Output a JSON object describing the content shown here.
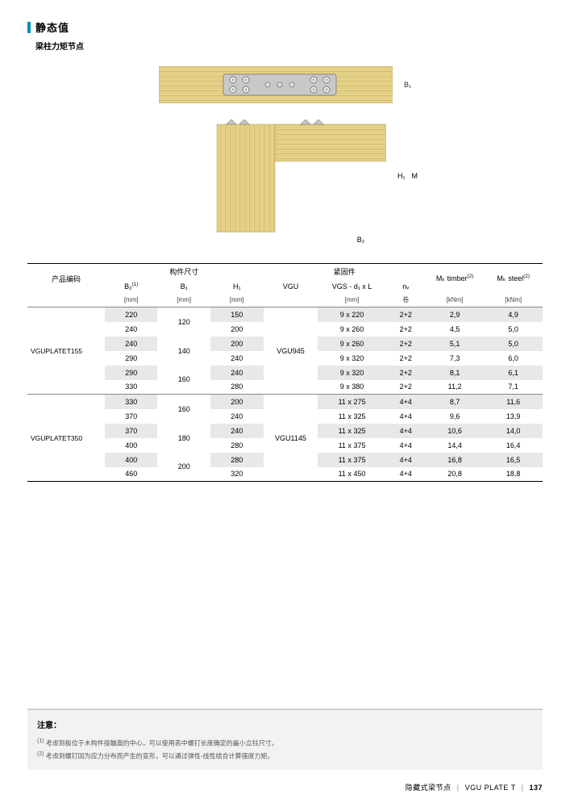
{
  "header": {
    "title": "静态值",
    "subtitle": "梁柱力矩节点"
  },
  "diagram": {
    "labels": {
      "b1": "B₁",
      "h1": "H₁",
      "m": "M",
      "b2": "B₂"
    },
    "wood_color": "#e8d38a",
    "wood_dark": "#d4bf78",
    "plate_color": "#c8c8c8",
    "plate_stroke": "#888888",
    "bolt_color": "#9aa0a6"
  },
  "table": {
    "headers": {
      "product": "产品编码",
      "group1": "构件尺寸",
      "group2": "紧固件",
      "b2": "B₂",
      "b1": "B₁",
      "h1": "H₁",
      "vgu": "VGU",
      "vgs": "VGS - d₁ x L",
      "nv": "nᵥ",
      "mk_timber": "Mₖ timber",
      "mk_steel": "Mₖ steel",
      "sup1": "(1)",
      "sup2": "(2)",
      "units_mm": "[mm]",
      "units_knm": "[kNm]",
      "units_juan": "卷"
    },
    "rows": [
      {
        "code": "VGUPLATET155",
        "vgu": "VGU945",
        "b2": "220",
        "b1": "120",
        "h1": "150",
        "vgs": "9 x 220",
        "nv": "2+2",
        "mt": "2,9",
        "ms": "4,9",
        "shade": true,
        "code_rs": 6,
        "vgu_rs": 6,
        "b1_rs": 2
      },
      {
        "b2": "240",
        "h1": "200",
        "vgs": "9 x 260",
        "nv": "2+2",
        "mt": "4,5",
        "ms": "5,0"
      },
      {
        "b2": "240",
        "b1": "140",
        "h1": "200",
        "vgs": "9 x 260",
        "nv": "2+2",
        "mt": "5,1",
        "ms": "5,0",
        "shade": true,
        "b1_rs": 2
      },
      {
        "b2": "290",
        "h1": "240",
        "vgs": "9 x 320",
        "nv": "2+2",
        "mt": "7,3",
        "ms": "6,0"
      },
      {
        "b2": "290",
        "b1": "160",
        "h1": "240",
        "vgs": "9 x 320",
        "nv": "2+2",
        "mt": "8,1",
        "ms": "6,1",
        "shade": true,
        "b1_rs": 2
      },
      {
        "b2": "330",
        "h1": "280",
        "vgs": "9 x 380",
        "nv": "2+2",
        "mt": "11,2",
        "ms": "7,1",
        "sep": true
      },
      {
        "code": "VGUPLATET350",
        "vgu": "VGU1145",
        "b2": "330",
        "b1": "160",
        "h1": "200",
        "vgs": "11 x 275",
        "nv": "4+4",
        "mt": "8,7",
        "ms": "11,6",
        "shade": true,
        "code_rs": 6,
        "vgu_rs": 6,
        "b1_rs": 2
      },
      {
        "b2": "370",
        "h1": "240",
        "vgs": "11 x 325",
        "nv": "4+4",
        "mt": "9,6",
        "ms": "13,9"
      },
      {
        "b2": "370",
        "b1": "180",
        "h1": "240",
        "vgs": "11 x 325",
        "nv": "4+4",
        "mt": "10,6",
        "ms": "14,0",
        "shade": true,
        "b1_rs": 2
      },
      {
        "b2": "400",
        "h1": "280",
        "vgs": "11 x 375",
        "nv": "4+4",
        "mt": "14,4",
        "ms": "16,4"
      },
      {
        "b2": "400",
        "b1": "200",
        "h1": "280",
        "vgs": "11 x 375",
        "nv": "4+4",
        "mt": "16,8",
        "ms": "16,5",
        "shade": true,
        "b1_rs": 2
      },
      {
        "b2": "460",
        "h1": "320",
        "vgs": "11 x 450",
        "nv": "4+4",
        "mt": "20,8",
        "ms": "18,8"
      }
    ]
  },
  "notes": {
    "title": "注意：",
    "lines": [
      "考虑到板位于木构件接触面的中心，可以使用表中螺钉长度确定的最小立柱尺寸。",
      "考虑到螺钉因为应力分布而产生的变形，可以通过弹性-线性结合计算强度力矩。"
    ]
  },
  "footer": {
    "left": "隐藏式梁节点",
    "right": "VGU PLATE T",
    "page": "137"
  }
}
